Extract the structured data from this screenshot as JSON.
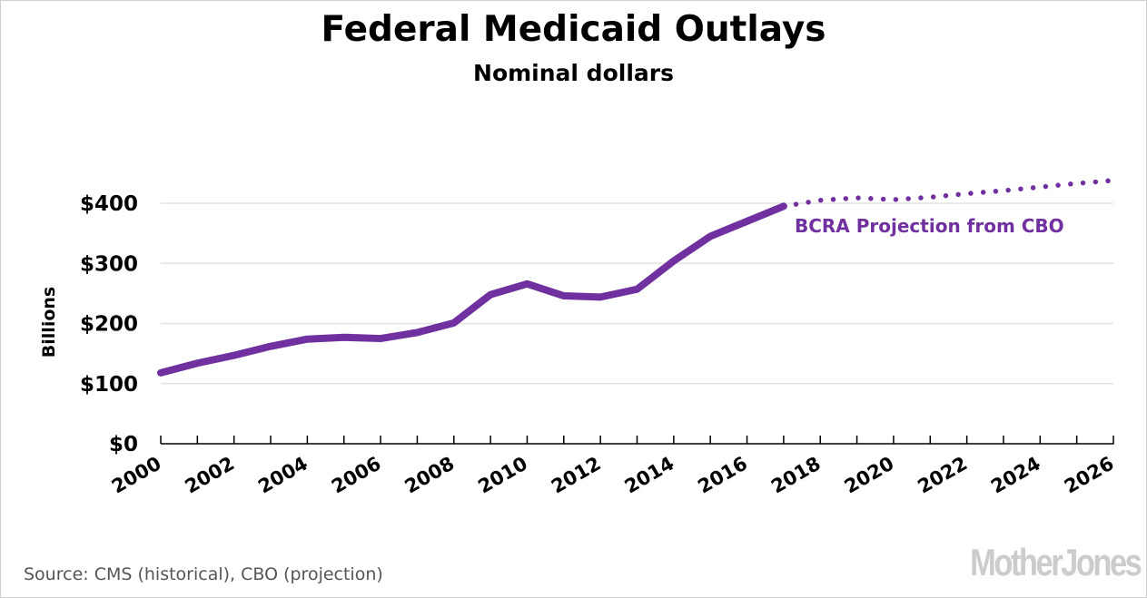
{
  "chart_data": {
    "type": "line",
    "title": "Federal Medicaid Outlays",
    "subtitle": "Nominal dollars",
    "xlabel": "",
    "ylabel": "Billions",
    "xlim": [
      2000,
      2026
    ],
    "ylim": [
      0,
      400
    ],
    "grid": true,
    "y_ticks": [
      {
        "value": 0,
        "label": "$0"
      },
      {
        "value": 100,
        "label": "$100"
      },
      {
        "value": 200,
        "label": "$200"
      },
      {
        "value": 300,
        "label": "$300"
      },
      {
        "value": 400,
        "label": "$400"
      }
    ],
    "x_tick_labels": [
      "2000",
      "2002",
      "2004",
      "2006",
      "2008",
      "2010",
      "2012",
      "2014",
      "2016",
      "2018",
      "2020",
      "2022",
      "2024",
      "2026"
    ],
    "series": [
      {
        "name": "Historical (CMS)",
        "style": "solid",
        "color": "#7030a0",
        "x": [
          2000,
          2001,
          2002,
          2003,
          2004,
          2005,
          2006,
          2007,
          2008,
          2009,
          2010,
          2011,
          2012,
          2013,
          2014,
          2015,
          2016,
          2017
        ],
        "values": [
          118,
          134,
          147,
          162,
          174,
          177,
          175,
          185,
          201,
          248,
          266,
          246,
          244,
          257,
          304,
          345,
          370,
          395
        ]
      },
      {
        "name": "BCRA Projection from CBO",
        "style": "dotted",
        "color": "#7030a0",
        "x": [
          2017,
          2018,
          2019,
          2020,
          2021,
          2022,
          2023,
          2024,
          2025,
          2026
        ],
        "values": [
          395,
          405,
          409,
          406,
          410,
          416,
          421,
          427,
          433,
          438
        ]
      }
    ],
    "annotations": [
      {
        "text": "BCRA Projection from CBO",
        "color": "#7030a0",
        "anchor_x": 2017.3,
        "anchor_y": 352
      }
    ]
  },
  "footer": {
    "source": "Source: CMS (historical), CBO (projection)",
    "logo": "MotherJones"
  }
}
